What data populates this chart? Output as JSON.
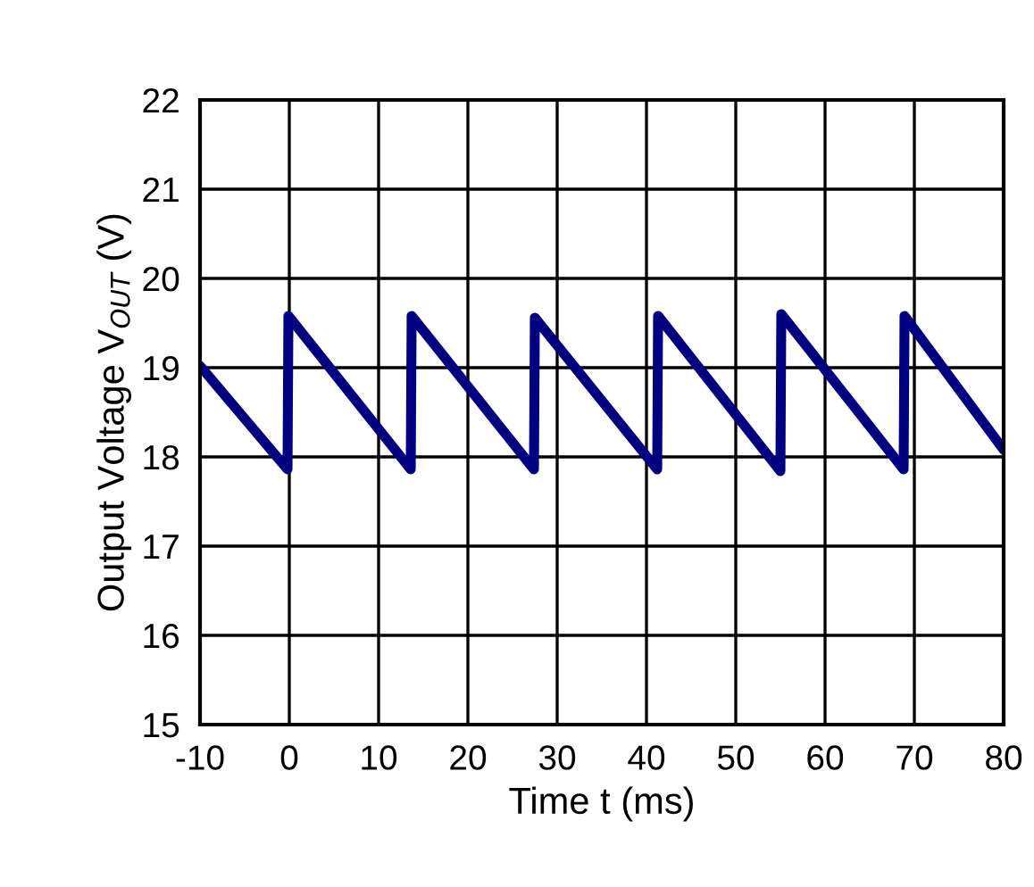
{
  "chart_data": {
    "type": "line",
    "xlabel": "Time t (ms)",
    "ylabel": "Output Voltage V$_{OUT}$ (V)",
    "series": [
      {
        "color": "#000080",
        "x": [
          -10,
          -0.2,
          -0.1,
          13.6,
          13.7,
          27.4,
          27.5,
          41.2,
          41.3,
          55.0,
          55.1,
          68.8,
          68.9,
          80
        ],
        "values": [
          19.02,
          17.86,
          19.58,
          17.86,
          19.58,
          17.86,
          19.56,
          17.86,
          19.58,
          17.84,
          19.6,
          17.86,
          19.58,
          18.08
        ]
      }
    ],
    "xlim": [
      -10,
      80
    ],
    "xticks": [
      -10,
      0,
      10,
      20,
      30,
      40,
      50,
      60,
      70,
      80
    ],
    "ylim": [
      15,
      22
    ],
    "yticks": [
      15,
      16,
      17,
      18,
      19,
      20,
      21,
      22
    ],
    "grid": true,
    "line_style": "solid",
    "marker": "none",
    "legend": false
  }
}
